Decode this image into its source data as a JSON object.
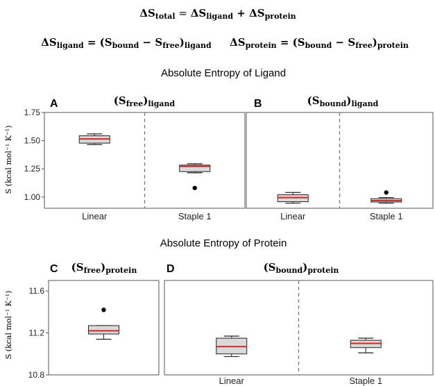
{
  "equations": {
    "total": {
      "lhs": "ΔS",
      "lhs_sub": "total",
      "eq": " = ",
      "t1": "ΔS",
      "t1_sub": "ligand",
      "plus": " + ",
      "t2": "ΔS",
      "t2_sub": "protein"
    },
    "ligand": {
      "lhs": "ΔS",
      "lhs_sub": "ligand",
      "rhs_open": " = (S",
      "b_sub": "bound",
      "minus": " − S",
      "f_sub": "free",
      "close": ")",
      "close_sub": "ligand"
    },
    "protein": {
      "lhs": "ΔS",
      "lhs_sub": "protein",
      "rhs_open": " = (S",
      "b_sub": "bound",
      "minus": " − S",
      "f_sub": "free",
      "close": ")",
      "close_sub": "protein"
    }
  },
  "section_titles": {
    "ligand": "Absolute Entropy of Ligand",
    "protein": "Absolute Entropy of Protein"
  },
  "colors": {
    "box_fill": "#d9d9d9",
    "median": "#d62728",
    "axis": "#555555",
    "divider": "#777777"
  },
  "chart_data": [
    {
      "type": "box",
      "panel_letter": "A",
      "panel_title": {
        "main": "(S",
        "sub1": "free",
        "close": ")",
        "sub2": "ligand"
      },
      "ylabel": "S (kcal mol⁻¹ K⁻¹)",
      "ylim": [
        0.9,
        1.75
      ],
      "yticks": [
        1.0,
        1.25,
        1.5,
        1.75
      ],
      "ytick_labels": [
        "1.00",
        "1.25",
        "1.50",
        "1.75"
      ],
      "categories": [
        "Linear",
        "Staple 1"
      ],
      "boxes": [
        {
          "whislo": 1.465,
          "q1": 1.478,
          "med": 1.515,
          "q3": 1.543,
          "whishi": 1.56,
          "fliers": []
        },
        {
          "whislo": 1.215,
          "q1": 1.225,
          "med": 1.272,
          "q3": 1.283,
          "whishi": 1.295,
          "fliers": [
            1.08
          ]
        }
      ]
    },
    {
      "type": "box",
      "panel_letter": "B",
      "panel_title": {
        "main": "(S",
        "sub1": "bound",
        "close": ")",
        "sub2": "ligand"
      },
      "ylim": [
        0.9,
        1.75
      ],
      "categories": [
        "Linear",
        "Staple 1"
      ],
      "boxes": [
        {
          "whislo": 0.945,
          "q1": 0.958,
          "med": 0.995,
          "q3": 1.02,
          "whishi": 1.04,
          "fliers": []
        },
        {
          "whislo": 0.945,
          "q1": 0.955,
          "med": 0.968,
          "q3": 0.985,
          "whishi": 0.995,
          "fliers": [
            1.04
          ]
        }
      ]
    },
    {
      "type": "box",
      "panel_letter": "C",
      "panel_title": {
        "main": "(S",
        "sub1": "free",
        "close": ")",
        "sub2": "protein"
      },
      "ylabel": "S (kcal mol⁻¹ K⁻¹)",
      "ylim": [
        10.8,
        11.7
      ],
      "yticks": [
        10.8,
        11.2,
        11.6
      ],
      "ytick_labels": [
        "10.8",
        "11.2",
        "11.6"
      ],
      "categories": [
        ""
      ],
      "boxes": [
        {
          "whislo": 11.14,
          "q1": 11.19,
          "med": 11.22,
          "q3": 11.27,
          "whishi": 11.27,
          "fliers": [
            11.42
          ]
        }
      ]
    },
    {
      "type": "box",
      "panel_letter": "D",
      "panel_title": {
        "main": "(S",
        "sub1": "bound",
        "close": ")",
        "sub2": "protein"
      },
      "ylim": [
        10.8,
        11.7
      ],
      "categories": [
        "Linear",
        "Staple 1"
      ],
      "boxes": [
        {
          "whislo": 10.975,
          "q1": 11.0,
          "med": 11.07,
          "q3": 11.15,
          "whishi": 11.17,
          "fliers": []
        },
        {
          "whislo": 11.01,
          "q1": 11.06,
          "med": 11.1,
          "q3": 11.13,
          "whishi": 11.15,
          "fliers": []
        }
      ]
    }
  ]
}
